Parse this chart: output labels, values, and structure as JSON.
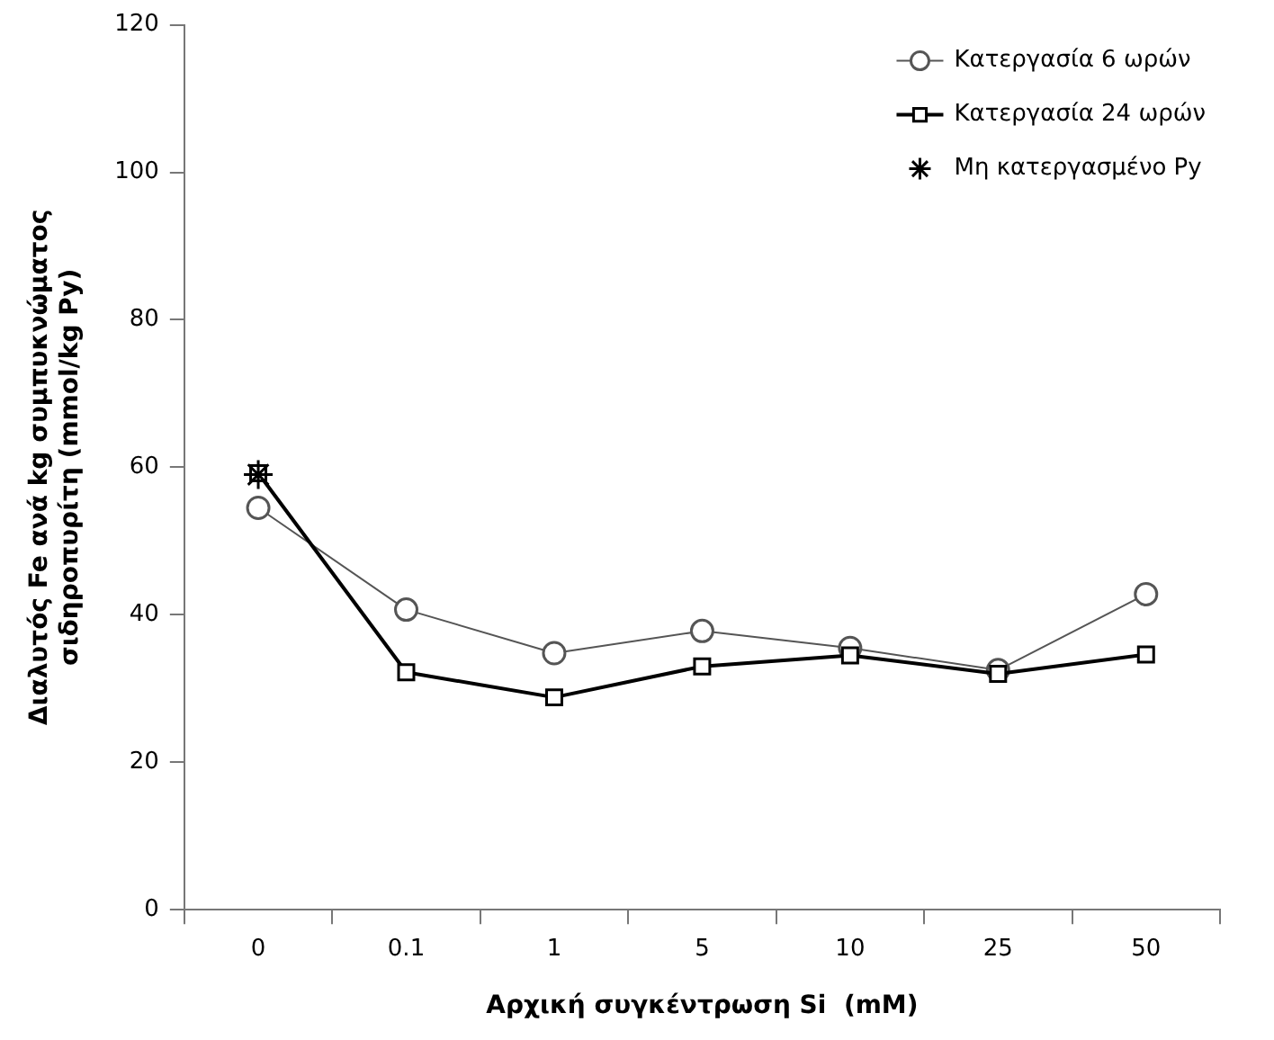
{
  "chart_data": {
    "type": "line",
    "xlabel": "Αρχική συγκέντρωση Si  (mM)",
    "ylabel": "Διαλυτός Fe ανά kg συμπυκνώματος\nσιδηροπυρίτη (mmol/kg Py)",
    "categories": [
      "0",
      "0.1",
      "1",
      "5",
      "10",
      "25",
      "50"
    ],
    "ylim": [
      0,
      120
    ],
    "yticks": [
      0,
      20,
      40,
      60,
      80,
      100,
      120
    ],
    "grid": false,
    "legend": "top right",
    "series": [
      {
        "name": "Κατεργασία 6 ωρών",
        "color": "#555555",
        "marker": "circle",
        "values": [
          54.5,
          40.7,
          34.8,
          37.8,
          35.5,
          32.5,
          42.8
        ]
      },
      {
        "name": "Κατεργασία 24 ωρών",
        "color": "#000000",
        "marker": "square",
        "values": [
          59.2,
          32.2,
          28.8,
          33,
          34.5,
          32,
          34.6
        ]
      },
      {
        "name": "Μη κατεργασμένο Py",
        "type": "scatter",
        "color": "#000000",
        "marker": "cross",
        "values": [
          59,
          null,
          null,
          null,
          null,
          null,
          null
        ]
      }
    ]
  }
}
